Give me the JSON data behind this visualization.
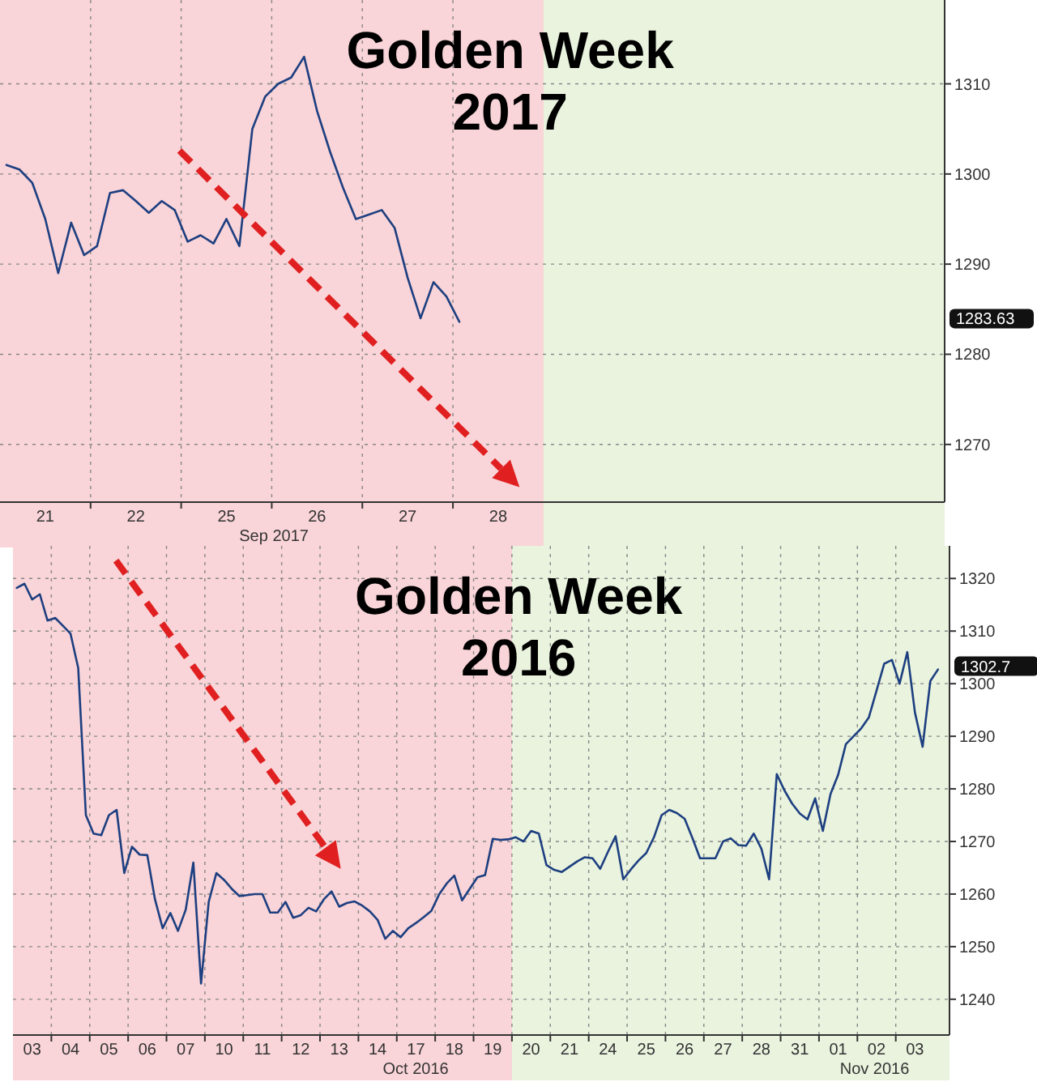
{
  "chart_data": [
    {
      "type": "line",
      "title": "Golden Week 2017",
      "xlabel": "Sep 2017",
      "ylim": [
        1263.6,
        1319.3
      ],
      "grid": true,
      "categories": [
        null,
        null,
        null,
        "21",
        null,
        null,
        null,
        null,
        null,
        null,
        "22",
        null,
        null,
        null,
        null,
        null,
        null,
        "25",
        null,
        null,
        null,
        null,
        null,
        null,
        "26",
        null,
        null,
        null,
        null,
        null,
        null,
        "27",
        null,
        null,
        null,
        null,
        null,
        null,
        "28",
        null,
        null,
        null,
        null,
        null,
        null,
        null,
        null,
        null,
        null,
        null,
        null,
        null,
        null,
        null,
        null,
        null,
        null,
        null,
        null,
        null,
        null,
        null,
        null,
        null,
        null,
        null,
        null,
        null,
        null,
        null,
        null,
        null,
        null
      ],
      "yticks": [
        1270,
        1280,
        1290,
        1300,
        1310
      ],
      "bands": [
        {
          "axis": "x",
          "from": "21",
          "to": "28",
          "color": "#f9d4d8"
        }
      ],
      "annotations": [
        "1283.63"
      ],
      "series": [
        {
          "color": "#1d3f80",
          "values": [
            1301,
            1300.5,
            1299,
            1295,
            1289,
            1294.6,
            1291,
            1292,
            1297.9,
            1298.2,
            1297,
            1295.7,
            1297,
            1296,
            1292.5,
            1293.2,
            1292.3,
            1295,
            1292,
            1305,
            1308.6,
            1310,
            1310.7,
            1313,
            1307,
            1302.5,
            1298.5,
            1295,
            1295.5,
            1296,
            1294,
            1288.5,
            1284,
            1288,
            1286.4,
            1283.6,
            null,
            null,
            null,
            null,
            null,
            null,
            null,
            null,
            null,
            null,
            null,
            null,
            null,
            null,
            null,
            null,
            null,
            null,
            null,
            null,
            null,
            null,
            null,
            null,
            null,
            null,
            null,
            null,
            null,
            null,
            null,
            null,
            null,
            null,
            null,
            null,
            null
          ]
        }
      ]
    },
    {
      "type": "line",
      "title": "Golden Week 2016",
      "ylim": [
        1233.2,
        1326.2
      ],
      "grid": true,
      "categories": [
        null,
        null,
        "03",
        null,
        null,
        null,
        null,
        "04",
        null,
        null,
        null,
        null,
        "05",
        null,
        null,
        null,
        null,
        "06",
        null,
        null,
        null,
        null,
        "07",
        null,
        null,
        null,
        null,
        "10",
        null,
        null,
        null,
        null,
        "11",
        null,
        null,
        null,
        null,
        "12",
        null,
        null,
        null,
        null,
        "13",
        null,
        null,
        null,
        null,
        "14",
        null,
        null,
        null,
        null,
        "17",
        null,
        null,
        null,
        null,
        "18",
        null,
        null,
        null,
        null,
        "19",
        null,
        null,
        null,
        null,
        "20",
        null,
        null,
        null,
        null,
        "21",
        null,
        null,
        null,
        null,
        "24",
        null,
        null,
        null,
        null,
        "25",
        null,
        null,
        null,
        null,
        "26",
        null,
        null,
        null,
        null,
        "27",
        null,
        null,
        null,
        null,
        "28",
        null,
        null,
        null,
        null,
        "31",
        null,
        null,
        null,
        null,
        "01",
        null,
        null,
        null,
        null,
        "02",
        null,
        null,
        null,
        null,
        "03",
        null,
        null,
        null,
        null
      ],
      "yticks": [
        1240,
        1250,
        1260,
        1270,
        1280,
        1290,
        1300,
        1310,
        1320
      ],
      "bands": [
        {
          "axis": "x",
          "from": "03",
          "to": "19",
          "color": "#f9d4d8"
        }
      ],
      "annotations": [
        "Oct 2016",
        "Nov 2016",
        "1302.7"
      ],
      "series": [
        {
          "color": "#1d3f80",
          "values": [
            1318.2,
            1319,
            1316,
            1317,
            1312,
            1312.5,
            1311,
            1309.5,
            1303,
            1275,
            1271.5,
            1271.2,
            1275,
            1276,
            1264,
            1269,
            1267.5,
            1267.4,
            1259,
            1253.5,
            1256.4,
            1253,
            1257,
            1266,
            1243,
            1258.5,
            1264,
            1262.7,
            1261,
            1259.6,
            1259.8,
            1260,
            1260,
            1256.5,
            1256.5,
            1258.5,
            1255.5,
            1256,
            1257.4,
            1256.7,
            1259,
            1260.5,
            1257.6,
            1258.3,
            1258.6,
            1257.8,
            1256.7,
            1255.1,
            1251.5,
            1253,
            1251.8,
            1253.5,
            1254.5,
            1255.6,
            1256.8,
            1259.9,
            1262,
            1263.5,
            1258.8,
            1261,
            1263.2,
            1263.6,
            1270.5,
            1270.3,
            1270.4,
            1270.8,
            1270,
            1272,
            1271.5,
            1265.5,
            1264.6,
            1264.2,
            1265.2,
            1266.2,
            1267,
            1266.8,
            1264.8,
            1268,
            1271,
            1262.8,
            1264.7,
            1266.4,
            1267.8,
            1270.8,
            1275,
            1276,
            1275.4,
            1274.3,
            1270.7,
            1266.8,
            1266.8,
            1266.8,
            1270,
            1270.6,
            1269.3,
            1269.2,
            1271.5,
            1268.6,
            1262.8,
            1282.8,
            1279.7,
            1277.2,
            1275.3,
            1274.2,
            1278.2,
            1272,
            1279,
            1282.7,
            1288.5,
            1290,
            1291.5,
            1293.6,
            1298.7,
            1303.8,
            1304.5,
            1300,
            1306,
            1294.5,
            1288,
            1300.5,
            1302.7,
            null
          ]
        }
      ]
    }
  ]
}
